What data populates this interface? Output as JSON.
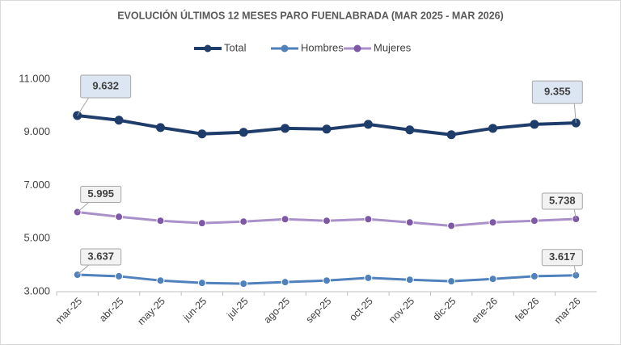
{
  "chart_data": {
    "type": "line",
    "title": "EVOLUCIÓN ÚLTIMOS 12 MESES PARO FUENLABRADA (MAR 2025 - MAR 2026)",
    "categories": [
      "mar-25",
      "abr-25",
      "may-25",
      "jun-25",
      "jul-25",
      "ago-25",
      "sep-25",
      "oct-25",
      "nov-25",
      "dic-25",
      "ene-26",
      "feb-26",
      "mar-26"
    ],
    "series": [
      {
        "name": "Total",
        "color": "#1f3d6b",
        "values": [
          9632,
          9455,
          9180,
          8940,
          9000,
          9150,
          9120,
          9300,
          9090,
          8910,
          9150,
          9300,
          9355
        ],
        "value_labels": [
          "9.632",
          null,
          null,
          null,
          null,
          null,
          null,
          null,
          null,
          null,
          null,
          null,
          "9.355"
        ]
      },
      {
        "name": "Hombres",
        "color": "#4f81bd",
        "values": [
          3637,
          3580,
          3420,
          3330,
          3300,
          3360,
          3420,
          3520,
          3450,
          3390,
          3480,
          3580,
          3617
        ],
        "value_labels": [
          "3.637",
          null,
          null,
          null,
          null,
          null,
          null,
          null,
          null,
          null,
          null,
          null,
          "3.617"
        ]
      },
      {
        "name": "Mujeres",
        "color": "#a990c8",
        "values": [
          5995,
          5820,
          5670,
          5580,
          5640,
          5730,
          5670,
          5730,
          5610,
          5480,
          5610,
          5670,
          5738
        ],
        "value_labels": [
          "5.995",
          null,
          null,
          null,
          null,
          null,
          null,
          null,
          null,
          null,
          null,
          null,
          "5.738"
        ]
      }
    ],
    "ylim": [
      3000,
      11000
    ],
    "yticks": [
      {
        "value": 3000,
        "label": "3.000"
      },
      {
        "value": 5000,
        "label": "5.000"
      },
      {
        "value": 7000,
        "label": "7.000"
      },
      {
        "value": 9000,
        "label": "9.000"
      },
      {
        "value": 11000,
        "label": "11.000"
      }
    ],
    "grid": false,
    "legend": "top"
  }
}
